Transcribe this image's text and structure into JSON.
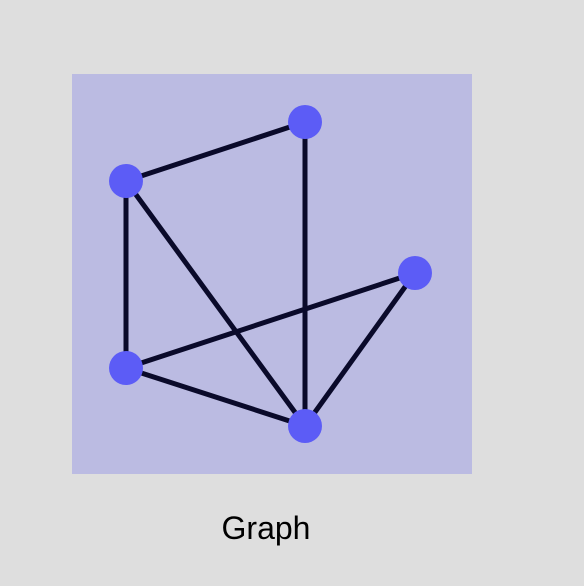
{
  "caption": "Graph",
  "colors": {
    "page_background": "#dedede",
    "panel_background": "#bbbbe2",
    "node_fill": "#5c5cf6",
    "edge_stroke": "#0a0a2a"
  },
  "graph": {
    "nodes": [
      {
        "id": "top-center"
      },
      {
        "id": "upper-left"
      },
      {
        "id": "right"
      },
      {
        "id": "lower-left"
      },
      {
        "id": "bottom-center"
      }
    ],
    "edges": [
      {
        "from": "upper-left",
        "to": "top-center"
      },
      {
        "from": "top-center",
        "to": "bottom-center"
      },
      {
        "from": "upper-left",
        "to": "lower-left"
      },
      {
        "from": "upper-left",
        "to": "bottom-center"
      },
      {
        "from": "lower-left",
        "to": "right"
      },
      {
        "from": "lower-left",
        "to": "bottom-center"
      },
      {
        "from": "right",
        "to": "bottom-center"
      }
    ]
  }
}
